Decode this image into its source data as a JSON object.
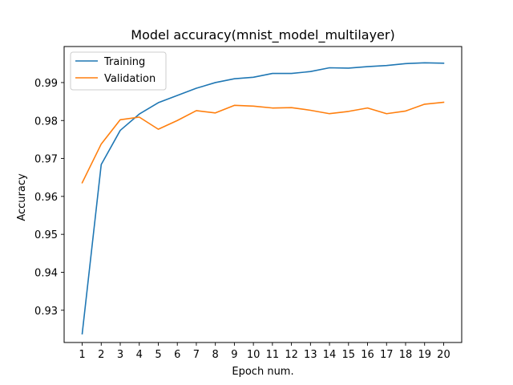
{
  "chart_data": {
    "type": "line",
    "title": "Model accuracy(mnist_model_multilayer)",
    "xlabel": "Epoch num.",
    "ylabel": "Accuracy",
    "x": [
      1,
      2,
      3,
      4,
      5,
      6,
      7,
      8,
      9,
      10,
      11,
      12,
      13,
      14,
      15,
      16,
      17,
      18,
      19,
      20
    ],
    "xticks": [
      "1",
      "2",
      "3",
      "4",
      "5",
      "6",
      "7",
      "8",
      "9",
      "10",
      "11",
      "12",
      "13",
      "14",
      "15",
      "16",
      "17",
      "18",
      "19",
      "20"
    ],
    "yticks": [
      "0.93",
      "0.94",
      "0.95",
      "0.96",
      "0.97",
      "0.98",
      "0.99"
    ],
    "ylim": [
      0.9215,
      0.9995
    ],
    "xlim": [
      0.05,
      20.95
    ],
    "grid": false,
    "legend": "upper-left",
    "series": [
      {
        "name": "Training",
        "color": "#1f77b4",
        "values": [
          0.9238,
          0.9684,
          0.9774,
          0.9817,
          0.9847,
          0.9866,
          0.9885,
          0.99,
          0.991,
          0.9914,
          0.9924,
          0.9924,
          0.9929,
          0.9939,
          0.9938,
          0.9942,
          0.9945,
          0.995,
          0.9952,
          0.9951
        ]
      },
      {
        "name": "Validation",
        "color": "#ff7f0e",
        "values": [
          0.9636,
          0.9738,
          0.9802,
          0.9809,
          0.9777,
          0.98,
          0.9826,
          0.982,
          0.984,
          0.9838,
          0.9833,
          0.9834,
          0.9827,
          0.9818,
          0.9824,
          0.9833,
          0.9818,
          0.9825,
          0.9843,
          0.9848
        ]
      }
    ]
  }
}
